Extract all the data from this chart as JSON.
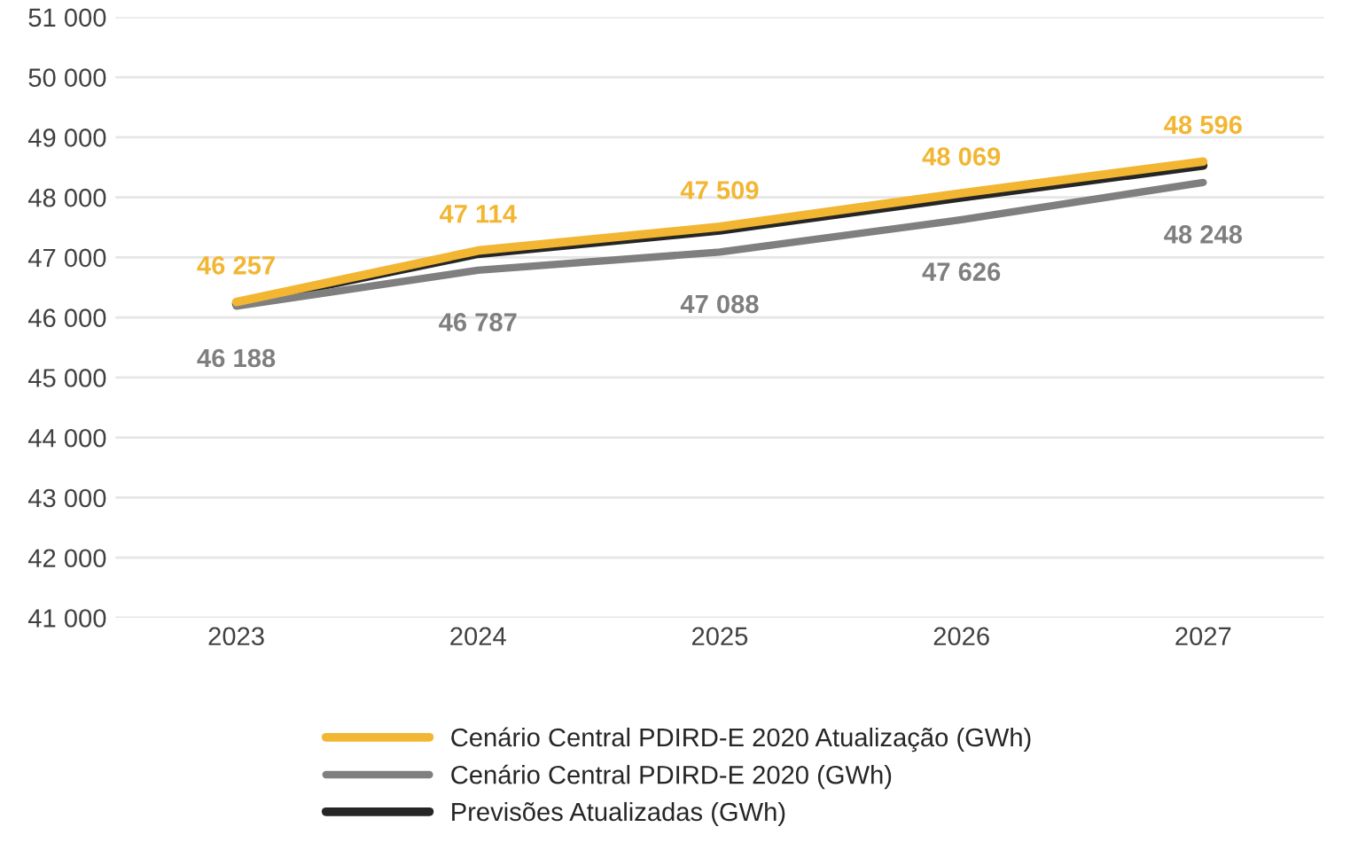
{
  "chart_data": {
    "type": "line",
    "categories": [
      "2023",
      "2024",
      "2025",
      "2026",
      "2027"
    ],
    "series": [
      {
        "name": "Cenário Central PDIRD-E 2020 Atualização (GWh)",
        "color": "#f2b632",
        "values": [
          46257,
          47114,
          47509,
          48069,
          48596
        ],
        "value_labels": [
          "46 257",
          "47 114",
          "47 509",
          "48 069",
          "48 596"
        ]
      },
      {
        "name": "Cenário Central PDIRD-E 2020 (GWh)",
        "color": "#7f7f7f",
        "values": [
          46188,
          46787,
          47088,
          47626,
          48248
        ],
        "value_labels": [
          "46 188",
          "46 787",
          "47 088",
          "47 626",
          "48 248"
        ]
      },
      {
        "name": "Previsões Atualizadas (GWh)",
        "color": "#262626",
        "values": [
          46230,
          47060,
          47450,
          48000,
          48530
        ]
      }
    ],
    "ylim": [
      41000,
      51000
    ],
    "yticks": [
      {
        "value": 41000,
        "label": "41 000"
      },
      {
        "value": 42000,
        "label": "42 000"
      },
      {
        "value": 43000,
        "label": "43 000"
      },
      {
        "value": 44000,
        "label": "44 000"
      },
      {
        "value": 45000,
        "label": "45 000"
      },
      {
        "value": 46000,
        "label": "46 000"
      },
      {
        "value": 47000,
        "label": "47 000"
      },
      {
        "value": 48000,
        "label": "48 000"
      },
      {
        "value": 49000,
        "label": "49 000"
      },
      {
        "value": 50000,
        "label": "50 000"
      },
      {
        "value": 51000,
        "label": "51 000"
      }
    ],
    "grid": "y",
    "legend": "bottom",
    "marker": "none",
    "line_style": "solid"
  }
}
